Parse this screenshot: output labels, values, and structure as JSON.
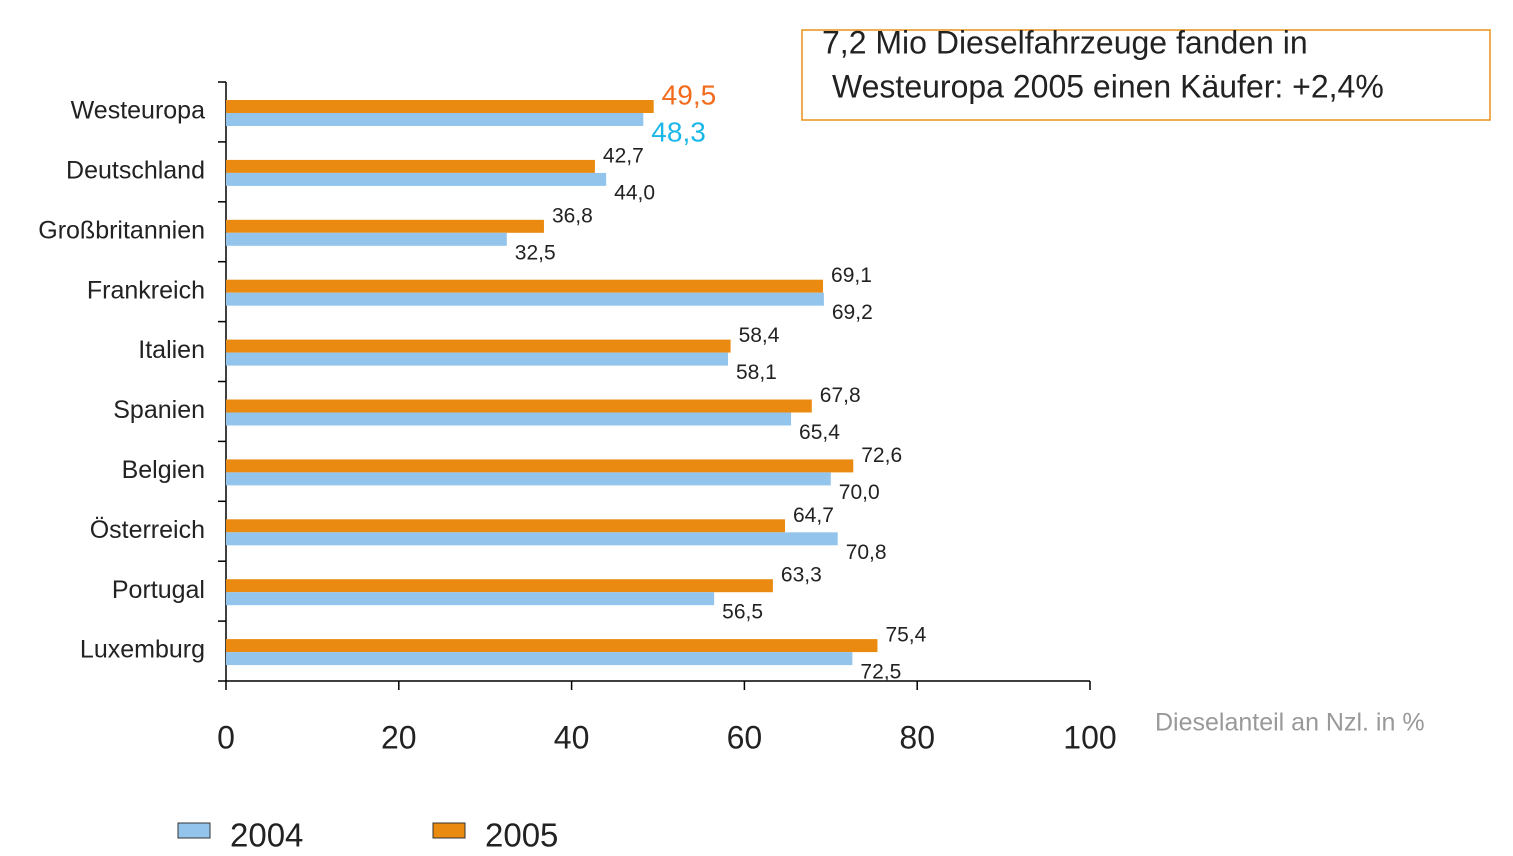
{
  "chart_data": {
    "type": "hbar",
    "annotation": [
      "7,2 Mio Dieselfahrzeuge fanden in",
      "Westeuropa 2005 einen Käufer: +2,4%"
    ],
    "x_label": "Dieselanteil an Nzl. in %",
    "categories": [
      "Westeuropa",
      "Deutschland",
      "Großbritannien",
      "Frankreich",
      "Italien",
      "Spanien",
      "Belgien",
      "Österreich",
      "Portugal",
      "Luxemburg"
    ],
    "series": [
      {
        "name": "2004",
        "color": "#93c5ec",
        "highlight_color": "#1ab8e8",
        "values": [
          48.3,
          44.0,
          32.5,
          69.2,
          58.1,
          65.4,
          70.0,
          70.8,
          56.5,
          72.5
        ],
        "value_labels": [
          "48,3",
          "44,0",
          "32,5",
          "69,2",
          "58,1",
          "65,4",
          "70,0",
          "70,8",
          "56,5",
          "72,5"
        ]
      },
      {
        "name": "2005",
        "color": "#ea8a10",
        "highlight_color": "#f26a1b",
        "values": [
          49.5,
          42.7,
          36.8,
          69.1,
          58.4,
          67.8,
          72.6,
          64.7,
          63.3,
          75.4
        ],
        "value_labels": [
          "49,5",
          "42,7",
          "36,8",
          "69,1",
          "58,4",
          "67,8",
          "72,6",
          "64,7",
          "63,3",
          "75,4"
        ]
      }
    ],
    "highlight_category": "Westeuropa",
    "xlim": [
      0,
      100
    ],
    "xticks": [
      0,
      20,
      40,
      60,
      80,
      100
    ]
  }
}
